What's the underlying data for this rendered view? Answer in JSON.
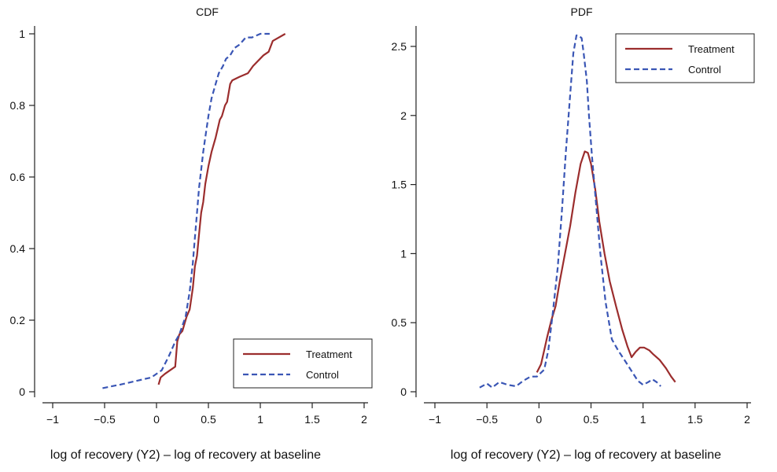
{
  "chart_data": [
    {
      "type": "line",
      "title": "CDF",
      "xlabel": "log of recovery (Y2) – log of recovery at baseline",
      "ylabel": "",
      "xlim": [
        -1.05,
        2.05
      ],
      "ylim": [
        -0.02,
        1.02
      ],
      "xticks": [
        -1,
        -0.5,
        0,
        0.5,
        1,
        1.5,
        2
      ],
      "xtick_labels": [
        "−1",
        "−0.5",
        "0",
        "0.5",
        "1",
        "1.5",
        "2"
      ],
      "yticks": [
        0,
        0.2,
        0.4,
        0.6,
        0.8,
        1
      ],
      "ytick_labels": [
        "0",
        "0.2",
        "0.4",
        "0.6",
        "0.8",
        "1"
      ],
      "legend": "bottom-right",
      "series": [
        {
          "name": "Treatment",
          "color": "#9b2d2d",
          "dash": "solid",
          "x": [
            0.02,
            0.04,
            0.08,
            0.13,
            0.18,
            0.2,
            0.22,
            0.25,
            0.27,
            0.29,
            0.32,
            0.35,
            0.37,
            0.39,
            0.41,
            0.43,
            0.45,
            0.47,
            0.5,
            0.53,
            0.57,
            0.61,
            0.63,
            0.66,
            0.68,
            0.71,
            0.73,
            0.8,
            0.88,
            0.93,
            1.03,
            1.08,
            1.12,
            1.24
          ],
          "y": [
            0.02,
            0.04,
            0.05,
            0.06,
            0.07,
            0.14,
            0.16,
            0.17,
            0.19,
            0.21,
            0.23,
            0.29,
            0.35,
            0.38,
            0.44,
            0.5,
            0.53,
            0.58,
            0.63,
            0.67,
            0.71,
            0.76,
            0.77,
            0.8,
            0.81,
            0.86,
            0.87,
            0.88,
            0.89,
            0.91,
            0.94,
            0.95,
            0.98,
            1.0
          ]
        },
        {
          "name": "Control",
          "color": "#3a56b5",
          "dash": "dashed",
          "x": [
            -0.52,
            -0.35,
            -0.2,
            -0.05,
            0.05,
            0.12,
            0.18,
            0.22,
            0.28,
            0.32,
            0.35,
            0.37,
            0.39,
            0.41,
            0.43,
            0.45,
            0.47,
            0.5,
            0.53,
            0.57,
            0.6,
            0.64,
            0.67,
            0.71,
            0.75,
            0.8,
            0.86,
            0.92,
            1.0,
            1.09
          ],
          "y": [
            0.01,
            0.02,
            0.03,
            0.04,
            0.06,
            0.1,
            0.14,
            0.16,
            0.21,
            0.28,
            0.36,
            0.43,
            0.5,
            0.57,
            0.62,
            0.67,
            0.71,
            0.77,
            0.82,
            0.86,
            0.89,
            0.91,
            0.93,
            0.94,
            0.96,
            0.97,
            0.99,
            0.99,
            1.0,
            1.0
          ]
        }
      ]
    },
    {
      "type": "line",
      "title": "PDF",
      "xlabel": "log of recovery (Y2) – log of recovery at baseline",
      "ylabel": "",
      "xlim": [
        -1.05,
        2.05
      ],
      "ylim": [
        -0.05,
        2.65
      ],
      "xticks": [
        -1,
        -0.5,
        0,
        0.5,
        1,
        1.5,
        2
      ],
      "xtick_labels": [
        "−1",
        "−0.5",
        "0",
        "0.5",
        "1",
        "1.5",
        "2"
      ],
      "yticks": [
        0,
        0.5,
        1,
        1.5,
        2,
        2.5
      ],
      "ytick_labels": [
        "0",
        "0.5",
        "1",
        "1.5",
        "2",
        "2.5"
      ],
      "legend": "top-right",
      "series": [
        {
          "name": "Treatment",
          "color": "#9b2d2d",
          "dash": "solid",
          "x": [
            -0.02,
            0.02,
            0.05,
            0.08,
            0.12,
            0.16,
            0.2,
            0.25,
            0.3,
            0.35,
            0.4,
            0.44,
            0.47,
            0.5,
            0.54,
            0.58,
            0.63,
            0.68,
            0.74,
            0.8,
            0.85,
            0.89,
            0.93,
            0.97,
            1.01,
            1.06,
            1.1,
            1.16,
            1.22,
            1.27,
            1.31
          ],
          "y": [
            0.14,
            0.2,
            0.3,
            0.4,
            0.52,
            0.62,
            0.8,
            1.0,
            1.2,
            1.44,
            1.65,
            1.74,
            1.73,
            1.65,
            1.47,
            1.23,
            1.0,
            0.8,
            0.62,
            0.45,
            0.33,
            0.25,
            0.29,
            0.32,
            0.32,
            0.3,
            0.27,
            0.23,
            0.17,
            0.11,
            0.07
          ]
        },
        {
          "name": "Control",
          "color": "#3a56b5",
          "dash": "dashed",
          "x": [
            -0.57,
            -0.5,
            -0.45,
            -0.38,
            -0.3,
            -0.22,
            -0.15,
            -0.08,
            -0.02,
            0.05,
            0.09,
            0.13,
            0.18,
            0.22,
            0.26,
            0.3,
            0.33,
            0.36,
            0.38,
            0.41,
            0.43,
            0.46,
            0.48,
            0.51,
            0.55,
            0.59,
            0.64,
            0.7,
            0.76,
            0.83,
            0.89,
            0.95,
            1.0,
            1.05,
            1.09,
            1.13,
            1.17
          ],
          "y": [
            0.03,
            0.06,
            0.03,
            0.07,
            0.05,
            0.04,
            0.08,
            0.11,
            0.11,
            0.16,
            0.3,
            0.55,
            0.9,
            1.3,
            1.75,
            2.15,
            2.45,
            2.58,
            2.58,
            2.56,
            2.45,
            2.25,
            2.0,
            1.7,
            1.35,
            1.0,
            0.65,
            0.38,
            0.3,
            0.22,
            0.15,
            0.08,
            0.05,
            0.07,
            0.09,
            0.07,
            0.04
          ]
        }
      ]
    }
  ]
}
